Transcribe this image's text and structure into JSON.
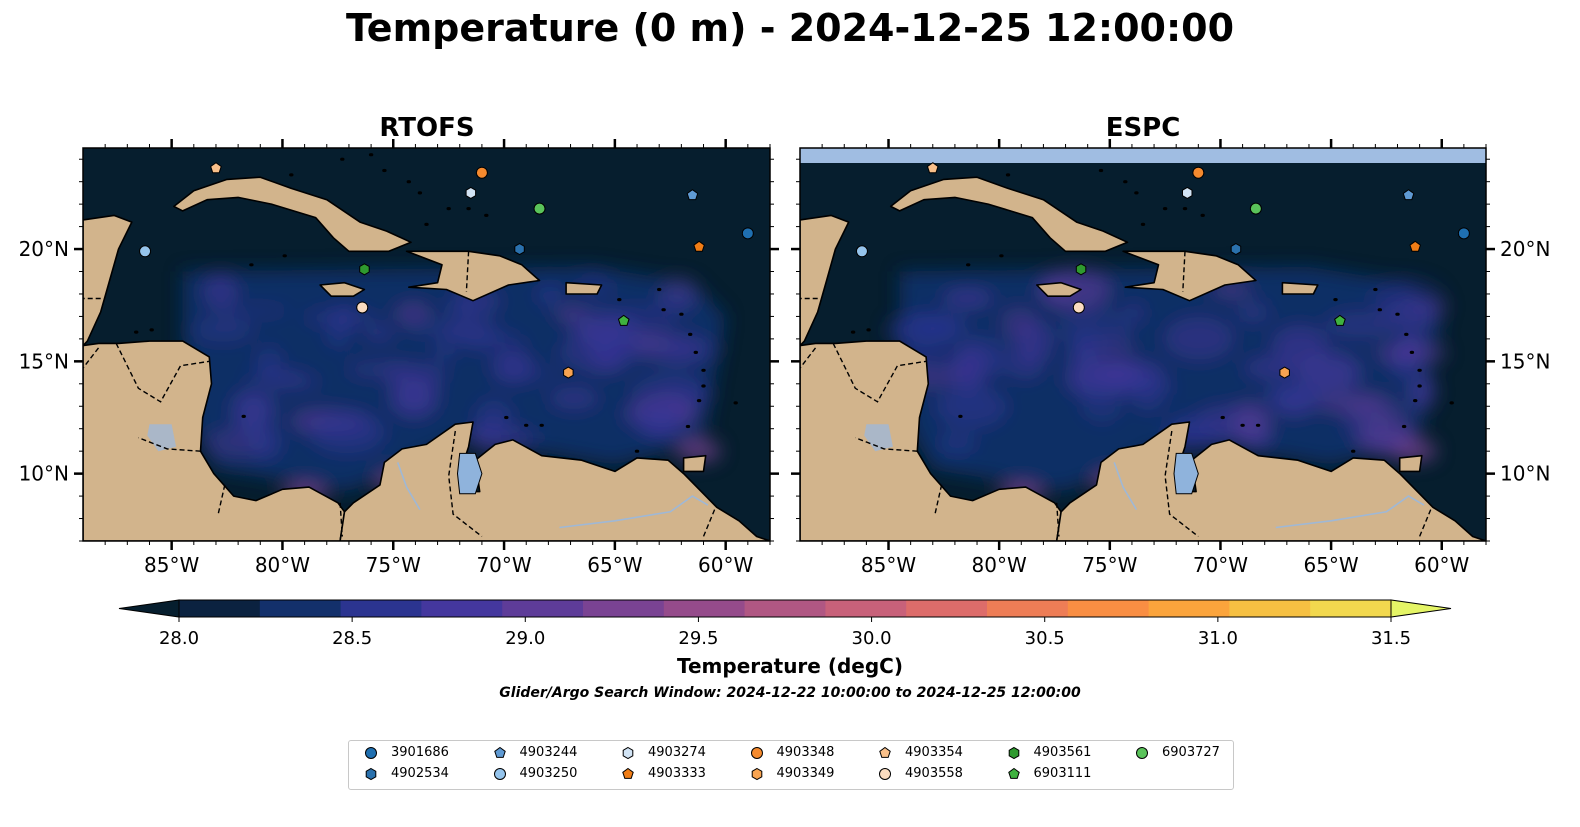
{
  "title": "Temperature (0 m) - 2024-12-25 12:00:00",
  "panels": [
    {
      "title": "RTOFS"
    },
    {
      "title": "ESPC"
    }
  ],
  "axes": {
    "lon_ticks": [
      "85°W",
      "80°W",
      "75°W",
      "70°W",
      "65°W",
      "60°W"
    ],
    "lat_ticks": [
      "20°N",
      "15°N",
      "10°N"
    ]
  },
  "colorbar": {
    "label": "Temperature (degC)",
    "ticks": [
      "28.0",
      "28.5",
      "29.0",
      "29.5",
      "30.0",
      "30.5",
      "31.0",
      "31.5"
    ],
    "range": [
      28.0,
      31.5
    ],
    "colors": [
      "#0b2240",
      "#13306b",
      "#2b3490",
      "#44379e",
      "#5e3c99",
      "#7a4393",
      "#954b8b",
      "#b05783",
      "#c8617a",
      "#dd6c6a",
      "#ee7d56",
      "#f98e43",
      "#fba43c",
      "#f6c042",
      "#f2d84e"
    ],
    "under_color": "#061e2e",
    "over_color": "#e5f566"
  },
  "search_window": "Glider/Argo Search Window: 2024-12-22 10:00:00 to 2024-12-25 12:00:00",
  "legend": [
    {
      "id": "3901686",
      "marker": "circle",
      "color": "#1f6fb0"
    },
    {
      "id": "4902534",
      "marker": "hexagon",
      "color": "#2a71ad"
    },
    {
      "id": "4903244",
      "marker": "pentagon",
      "color": "#5f9ad3"
    },
    {
      "id": "4903250",
      "marker": "circle",
      "color": "#95c4ec"
    },
    {
      "id": "4903274",
      "marker": "hexagon",
      "color": "#d2e4f5"
    },
    {
      "id": "4903333",
      "marker": "pentagon",
      "color": "#f07d16"
    },
    {
      "id": "4903348",
      "marker": "circle",
      "color": "#f58a2e"
    },
    {
      "id": "4903349",
      "marker": "hexagon",
      "color": "#f8a451"
    },
    {
      "id": "4903354",
      "marker": "pentagon",
      "color": "#f9c08a"
    },
    {
      "id": "4903558",
      "marker": "circle",
      "color": "#fbdcc0"
    },
    {
      "id": "4903561",
      "marker": "hexagon",
      "color": "#2f9a2f"
    },
    {
      "id": "6903111",
      "marker": "pentagon",
      "color": "#3fb23f"
    },
    {
      "id": "6903727",
      "marker": "circle",
      "color": "#5ac35a"
    }
  ],
  "observations": [
    {
      "id": "4903354",
      "lon": -83.0,
      "lat": 23.6
    },
    {
      "id": "4903348",
      "lon": -71.0,
      "lat": 23.4
    },
    {
      "id": "4903274",
      "lon": -71.5,
      "lat": 22.5
    },
    {
      "id": "6903727",
      "lon": -68.4,
      "lat": 21.8
    },
    {
      "id": "4903244",
      "lon": -61.5,
      "lat": 22.4
    },
    {
      "id": "3901686",
      "lon": -59.0,
      "lat": 20.7
    },
    {
      "id": "4903250",
      "lon": -86.2,
      "lat": 19.9
    },
    {
      "id": "4902534",
      "lon": -69.3,
      "lat": 20.0
    },
    {
      "id": "4903333",
      "lon": -61.2,
      "lat": 20.1
    },
    {
      "id": "4903561",
      "lon": -76.3,
      "lat": 19.1
    },
    {
      "id": "4903558",
      "lon": -76.4,
      "lat": 17.4
    },
    {
      "id": "6903111",
      "lon": -64.6,
      "lat": 16.8
    },
    {
      "id": "4903349",
      "lon": -67.1,
      "lat": 14.5
    }
  ]
}
